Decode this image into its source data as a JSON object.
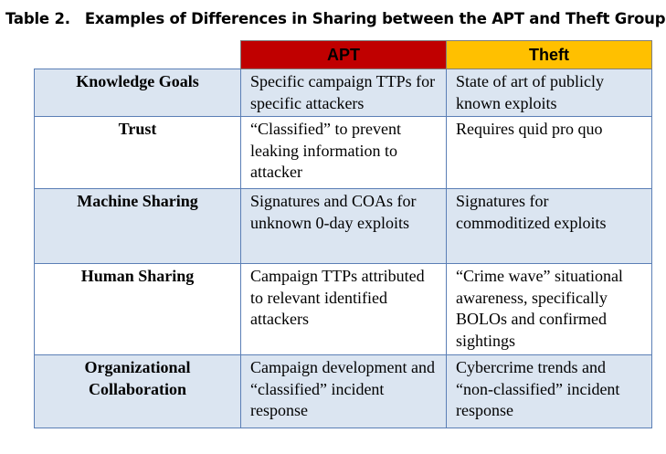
{
  "caption": {
    "label": "Table 2.",
    "title": "Examples of Differences in Sharing between the APT and Theft Groups"
  },
  "columns": {
    "apt": {
      "label": "APT",
      "color": "#c00000"
    },
    "theft": {
      "label": "Theft",
      "color": "#ffc000"
    }
  },
  "colors": {
    "row_shade": "#dbe5f1",
    "border": "#5b7fb6"
  },
  "rows": [
    {
      "label": "Knowledge Goals",
      "apt": "Specific campaign TTPs for specific attackers",
      "theft": "State of art of publicly known exploits"
    },
    {
      "label": "Trust",
      "apt": "“Classified” to prevent leaking information to attacker",
      "theft": "Requires quid pro quo"
    },
    {
      "label": "Machine Sharing",
      "apt": "Signatures and COAs for unknown 0-day exploits",
      "theft": "Signatures for commoditized exploits"
    },
    {
      "label": "Human Sharing",
      "apt": "Campaign TTPs attributed to relevant identified attackers",
      "theft": "“Crime wave” situational awareness, specifically BOLOs and confirmed sightings"
    },
    {
      "label": "Organizational Collaboration",
      "apt": "Campaign development and “classified” incident response",
      "theft": "Cybercrime trends and “non-classified” incident response"
    }
  ]
}
